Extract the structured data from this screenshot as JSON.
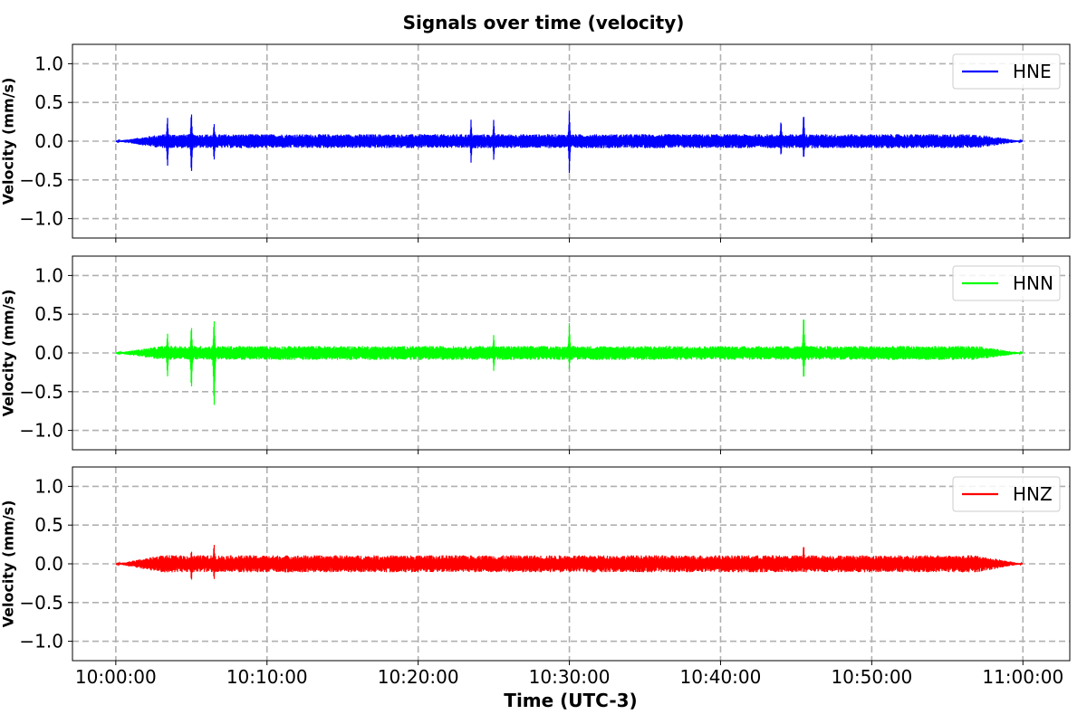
{
  "figure": {
    "title": "Signals over time (velocity)",
    "xlabel": "Time (UTC-3)"
  },
  "chart_data": [
    {
      "type": "line",
      "series_name": "HNE",
      "color": "#0000ff",
      "ylabel": "Velocity (mm/s)",
      "xlim": [
        "09:57:08",
        "11:03:06"
      ],
      "ylim": [
        -1.25,
        1.25
      ],
      "x_ticks": [
        "10:00:00",
        "10:10:00",
        "10:20:00",
        "10:30:00",
        "10:40:00",
        "10:50:00",
        "11:00:00"
      ],
      "y_ticks": [
        "1.0",
        "0.5",
        "0.0",
        "−0.5",
        "−1.0"
      ],
      "y_tick_values": [
        1.0,
        0.5,
        0.0,
        -0.5,
        -1.0
      ],
      "grid": true,
      "legend": "top-right",
      "noise_amplitude": 0.09,
      "spikes": [
        {
          "time": "10:03:25",
          "max": 0.35,
          "min": -0.37
        },
        {
          "time": "10:05:00",
          "max": 0.44,
          "min": -0.49
        },
        {
          "time": "10:06:30",
          "max": 0.27,
          "min": -0.29
        },
        {
          "time": "10:23:30",
          "max": 0.3,
          "min": -0.3
        },
        {
          "time": "10:25:00",
          "max": 0.31,
          "min": -0.27
        },
        {
          "time": "10:30:00",
          "max": 0.42,
          "min": -0.44
        },
        {
          "time": "10:44:00",
          "max": 0.31,
          "min": -0.22
        },
        {
          "time": "10:45:30",
          "max": 0.42,
          "min": -0.27
        }
      ]
    },
    {
      "type": "line",
      "series_name": "HNN",
      "color": "#00ff00",
      "ylabel": "Velocity (mm/s)",
      "xlim": [
        "09:57:08",
        "11:03:06"
      ],
      "ylim": [
        -1.25,
        1.25
      ],
      "x_ticks": [
        "10:00:00",
        "10:10:00",
        "10:20:00",
        "10:30:00",
        "10:40:00",
        "10:50:00",
        "11:00:00"
      ],
      "y_ticks": [
        "1.0",
        "0.5",
        "0.0",
        "−0.5",
        "−1.0"
      ],
      "y_tick_values": [
        1.0,
        0.5,
        0.0,
        -0.5,
        -1.0
      ],
      "grid": true,
      "legend": "top-right",
      "noise_amplitude": 0.09,
      "spikes": [
        {
          "time": "10:03:25",
          "max": 0.29,
          "min": -0.35
        },
        {
          "time": "10:05:00",
          "max": 0.41,
          "min": -0.55
        },
        {
          "time": "10:06:30",
          "max": 0.5,
          "min": -0.82
        },
        {
          "time": "10:25:00",
          "max": 0.26,
          "min": -0.26
        },
        {
          "time": "10:30:00",
          "max": 0.41,
          "min": -0.22
        },
        {
          "time": "10:45:30",
          "max": 0.58,
          "min": -0.41
        }
      ]
    },
    {
      "type": "line",
      "series_name": "HNZ",
      "color": "#ff0000",
      "ylabel": "Velocity (mm/s)",
      "xlim": [
        "09:57:08",
        "11:03:06"
      ],
      "ylim": [
        -1.25,
        1.25
      ],
      "x_ticks": [
        "10:00:00",
        "10:10:00",
        "10:20:00",
        "10:30:00",
        "10:40:00",
        "10:50:00",
        "11:00:00"
      ],
      "y_ticks": [
        "1.0",
        "0.5",
        "0.0",
        "−0.5",
        "−1.0"
      ],
      "y_tick_values": [
        1.0,
        0.5,
        0.0,
        -0.5,
        -1.0
      ],
      "grid": true,
      "legend": "top-right",
      "noise_amplitude": 0.11,
      "spikes": [
        {
          "time": "10:05:00",
          "max": 0.2,
          "min": -0.26
        },
        {
          "time": "10:06:30",
          "max": 0.3,
          "min": -0.24
        },
        {
          "time": "10:45:30",
          "max": 0.29,
          "min": -0.14
        }
      ]
    }
  ]
}
